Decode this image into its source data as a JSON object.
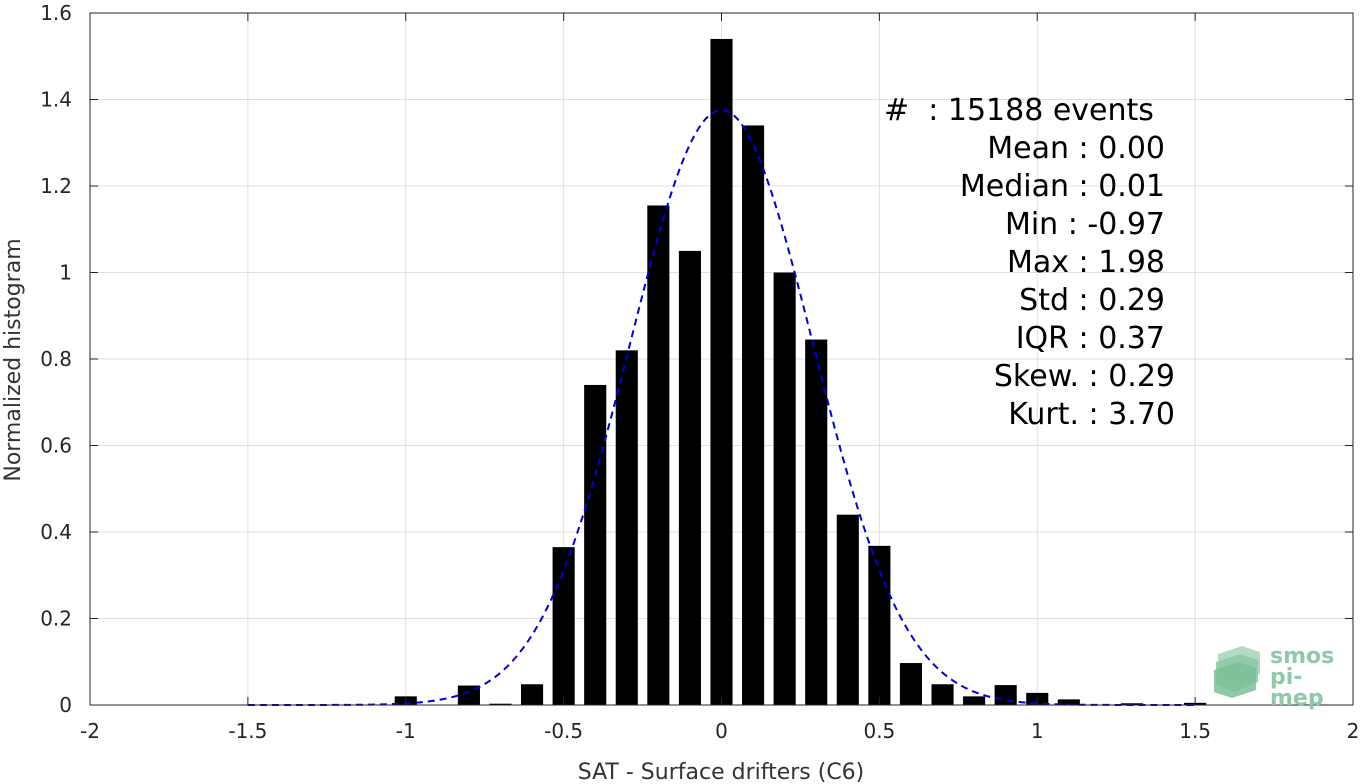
{
  "chart_data": {
    "type": "bar",
    "xlabel": "SAT - Surface drifters (C6)",
    "ylabel": "Normalized histogram",
    "xlim": [
      -2,
      2
    ],
    "ylim": [
      0,
      1.6
    ],
    "xticks": [
      "-2",
      "-1.5",
      "-1",
      "-0.5",
      "0",
      "0.5",
      "1",
      "1.5",
      "2"
    ],
    "yticks": [
      "0",
      "0.2",
      "0.4",
      "0.6",
      "0.8",
      "1",
      "1.2",
      "1.4",
      "1.6"
    ],
    "grid": true,
    "bar_width": 0.07,
    "bars": {
      "x": [
        -1.0,
        -0.8,
        -0.7,
        -0.6,
        -0.5,
        -0.4,
        -0.3,
        -0.2,
        -0.1,
        0.0,
        0.1,
        0.2,
        0.3,
        0.4,
        0.5,
        0.6,
        0.7,
        0.8,
        0.9,
        1.0,
        1.1,
        1.3,
        1.5
      ],
      "values": [
        0.02,
        0.045,
        0.003,
        0.048,
        0.365,
        0.74,
        0.82,
        1.155,
        1.05,
        1.54,
        1.34,
        1.0,
        0.845,
        0.44,
        0.368,
        0.097,
        0.048,
        0.02,
        0.046,
        0.028,
        0.013,
        0.004,
        0.005
      ],
      "color": "#000000"
    },
    "fit": {
      "type": "gaussian",
      "style": "dashed",
      "color": "#0000dd",
      "mean": 0.0,
      "std": 0.29,
      "x_range": [
        -1.5,
        1.5
      ]
    }
  },
  "stats": {
    "events": "#  : 15188 events",
    "mean": "Mean : 0.00",
    "median": "Median : 0.01",
    "min": "Min : -0.97",
    "max": "Max : 1.98",
    "std": "Std : 0.29",
    "iqr": "IQR : 0.37",
    "skew": "Skew. : 0.29",
    "kurt": "Kurt. : 3.70"
  },
  "logo": {
    "line1": "smos",
    "line2": "pi-mep",
    "color": "#8fc9a9"
  }
}
